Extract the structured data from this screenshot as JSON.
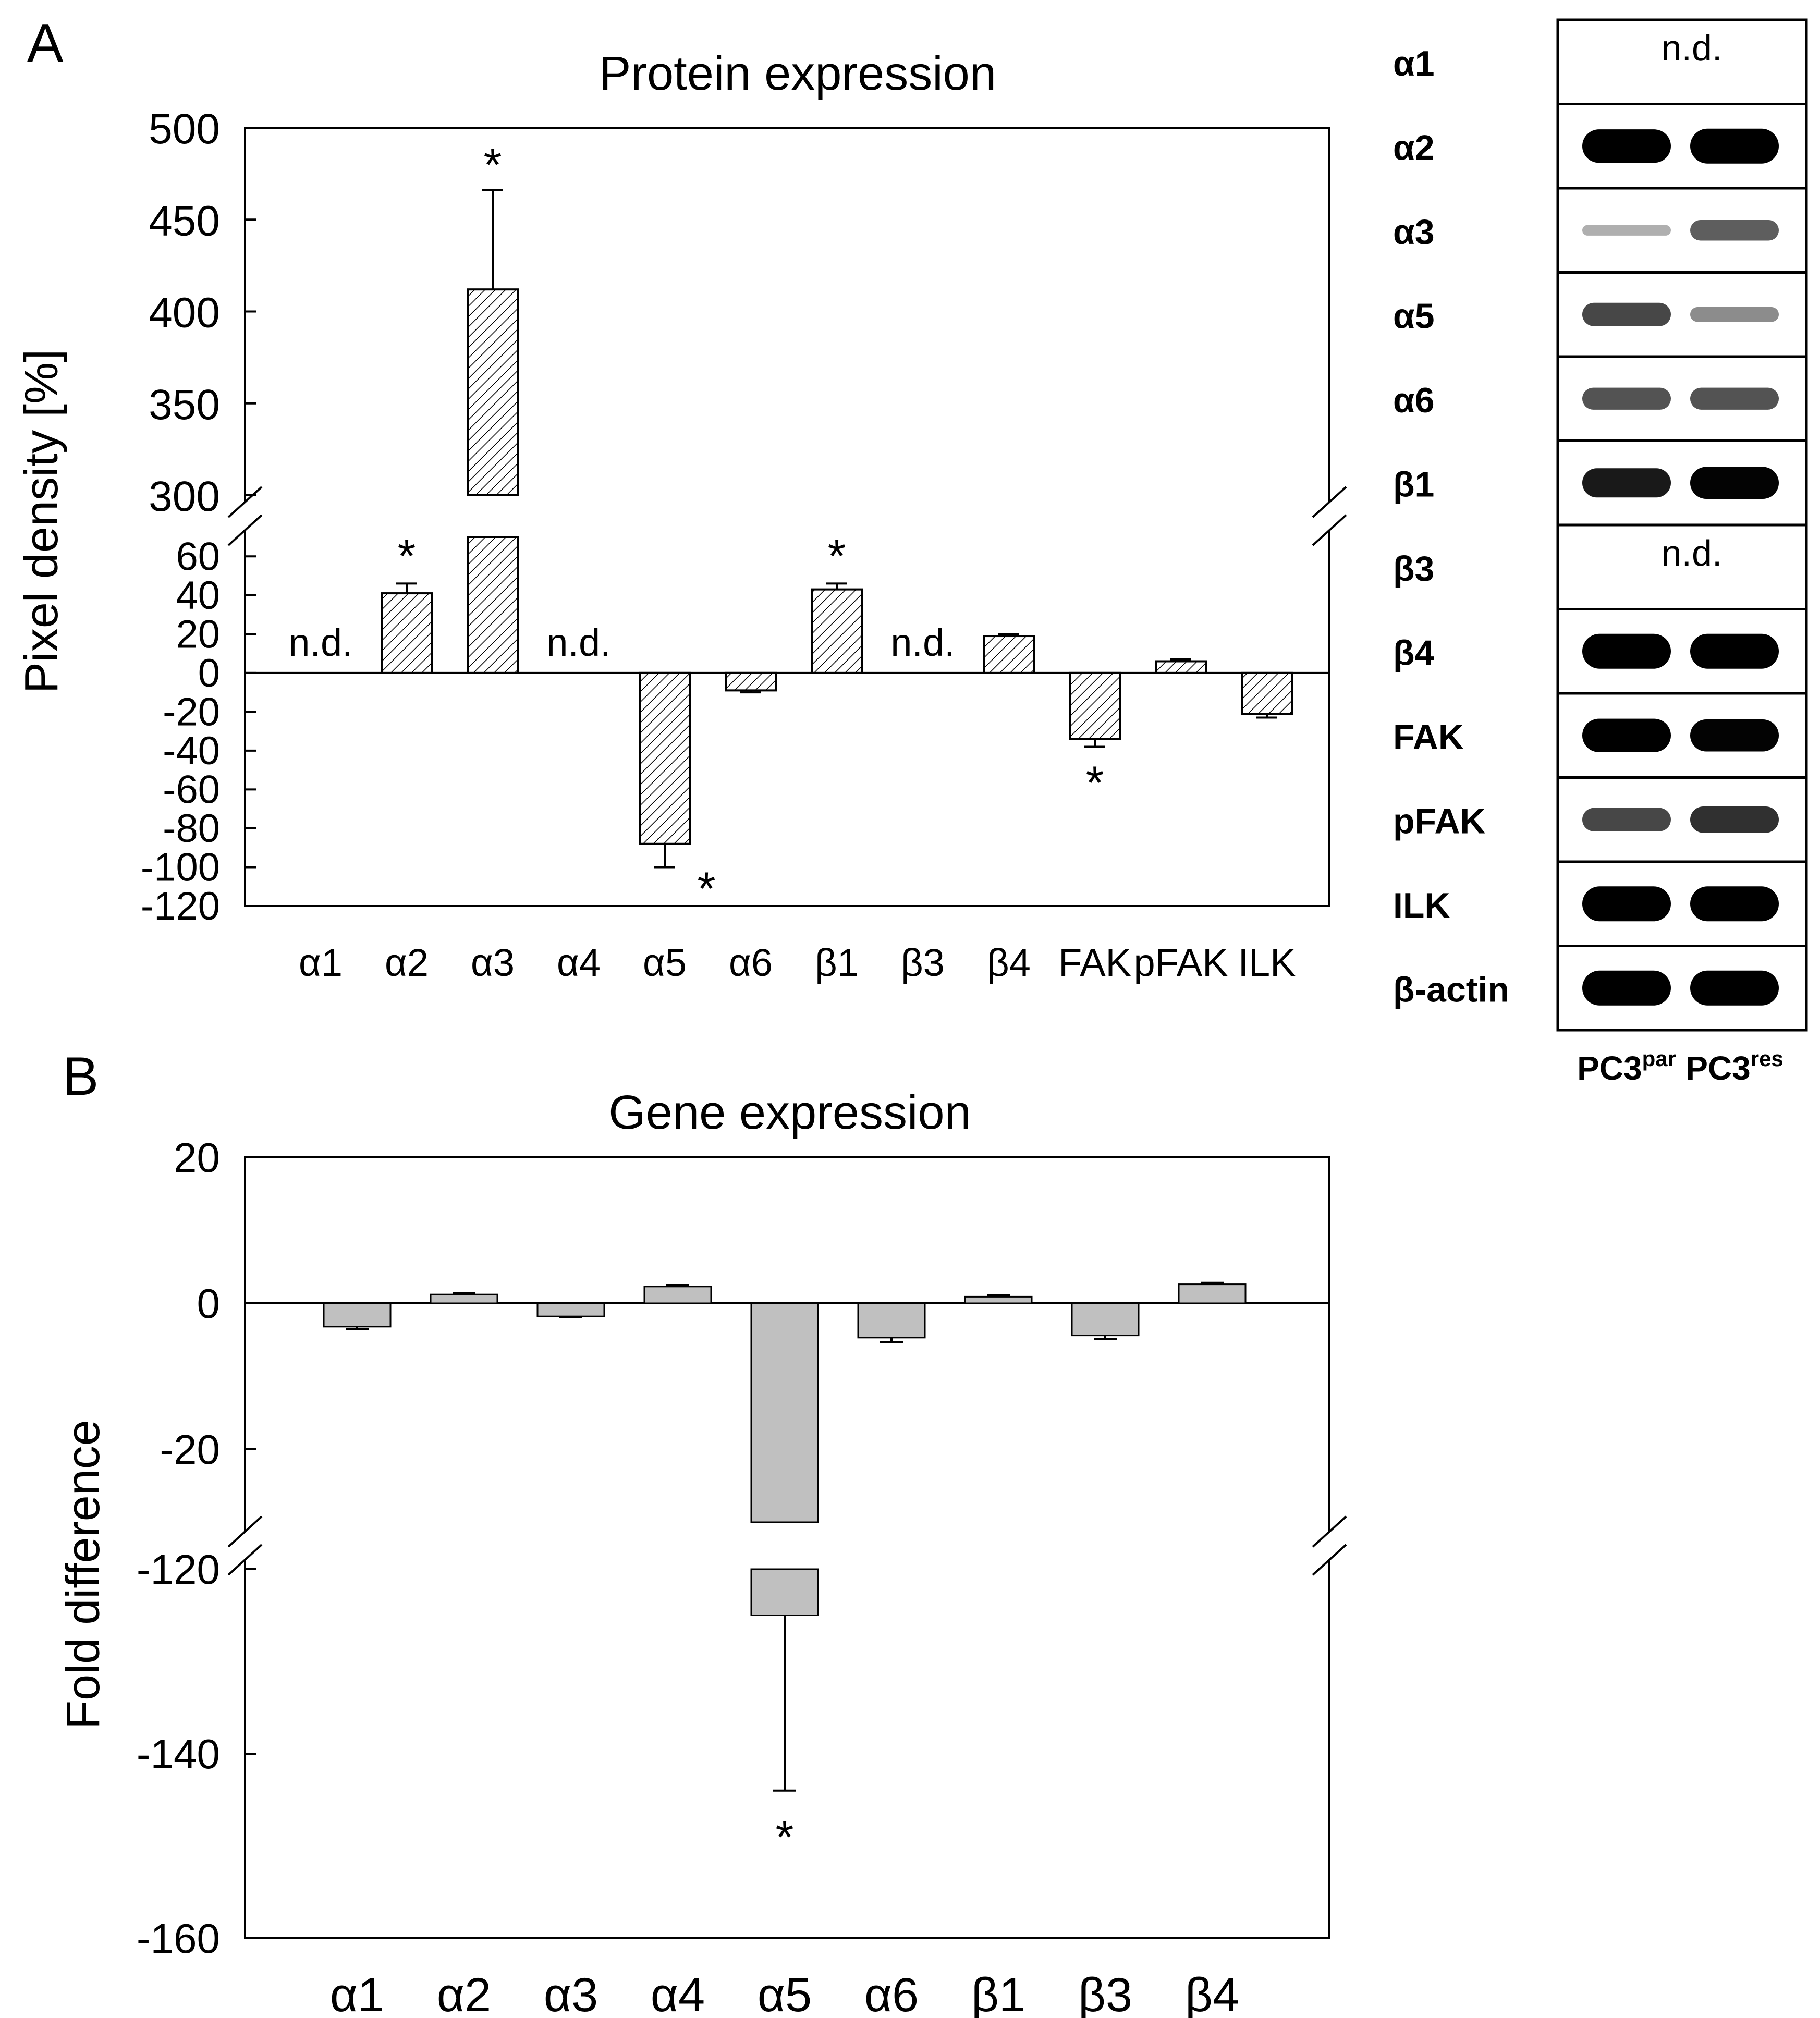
{
  "colors": {
    "axis": "#000000",
    "bar_b": "#c0c0c0",
    "hatch": "#000000",
    "blot": "#000000"
  },
  "panel_a": {
    "label": "A",
    "chart_data": {
      "type": "bar",
      "title": "Protein expression",
      "ylabel": "Pixel density [%]",
      "xlabel": "",
      "y_axis_break": true,
      "ylim_lower": [
        -120,
        70
      ],
      "ylim_upper": [
        300,
        500
      ],
      "yticks_upper": [
        "300",
        "350",
        "400",
        "450",
        "500"
      ],
      "yticks_lower": [
        "-120",
        "-100",
        "-80",
        "-60",
        "-40",
        "-20",
        "0",
        "20",
        "40",
        "60"
      ],
      "categories": [
        "α1",
        "α2",
        "α3",
        "α4",
        "α5",
        "α6",
        "β1",
        "β3",
        "β4",
        "FAK",
        "pFAK",
        "ILK"
      ],
      "values": [
        null,
        41,
        412,
        null,
        -88,
        -9,
        43,
        null,
        19,
        -34,
        6,
        -21
      ],
      "errors": [
        null,
        5,
        54,
        null,
        12,
        1,
        3,
        null,
        1,
        4,
        1,
        2
      ],
      "annotations": [
        "n.d.",
        "*",
        "*",
        "n.d.",
        "*",
        "",
        "*",
        "n.d.",
        "",
        "*",
        "",
        ""
      ],
      "bar_fill": "hatched"
    }
  },
  "panel_b": {
    "label": "B",
    "chart_data": {
      "type": "bar",
      "title": "Gene expression",
      "ylabel": "Fold difference",
      "xlabel": "",
      "y_axis_break": true,
      "ylim_upper": [
        -30,
        20
      ],
      "ylim_lower": [
        -160,
        -120
      ],
      "yticks_upper": [
        "20",
        "0",
        "-20"
      ],
      "yticks_lower": [
        "-120",
        "-140",
        "-160"
      ],
      "categories": [
        "α1",
        "α2",
        "α3",
        "α4",
        "α5",
        "α6",
        "β1",
        "β3",
        "β4"
      ],
      "values": [
        -3.2,
        1.2,
        -1.8,
        2.3,
        -125,
        -4.7,
        0.9,
        -4.4,
        2.6
      ],
      "errors": [
        0.3,
        0.2,
        0.1,
        0.2,
        19,
        0.6,
        0.2,
        0.5,
        0.2
      ],
      "annotations": [
        "",
        "",
        "",
        "",
        "*",
        "",
        "",
        "",
        ""
      ],
      "bar_fill": "#c0c0c0"
    }
  },
  "blot": {
    "rows": [
      {
        "label": "α1",
        "nd": true,
        "nd_text": "n.d.",
        "par": 0,
        "res": 0
      },
      {
        "label": "α2",
        "nd": false,
        "par": 0.95,
        "res": 1.0
      },
      {
        "label": "α3",
        "nd": false,
        "par": 0.15,
        "res": 0.5
      },
      {
        "label": "α5",
        "nd": false,
        "par": 0.6,
        "res": 0.3
      },
      {
        "label": "α6",
        "nd": false,
        "par": 0.55,
        "res": 0.55
      },
      {
        "label": "β1",
        "nd": false,
        "par": 0.8,
        "res": 0.9
      },
      {
        "label": "β3",
        "nd": true,
        "nd_text": "n.d.",
        "par": 0,
        "res": 0
      },
      {
        "label": "β4",
        "nd": false,
        "par": 1.0,
        "res": 1.0
      },
      {
        "label": "FAK",
        "nd": false,
        "par": 0.95,
        "res": 0.9
      },
      {
        "label": "pFAK",
        "nd": false,
        "par": 0.6,
        "res": 0.7
      },
      {
        "label": "ILK",
        "nd": false,
        "par": 1.0,
        "res": 1.0
      },
      {
        "label": "β-actin",
        "nd": false,
        "par": 1.0,
        "res": 1.0
      }
    ],
    "lanes": [
      {
        "base": "PC3",
        "sup": "par"
      },
      {
        "base": "PC3",
        "sup": "res"
      }
    ]
  }
}
